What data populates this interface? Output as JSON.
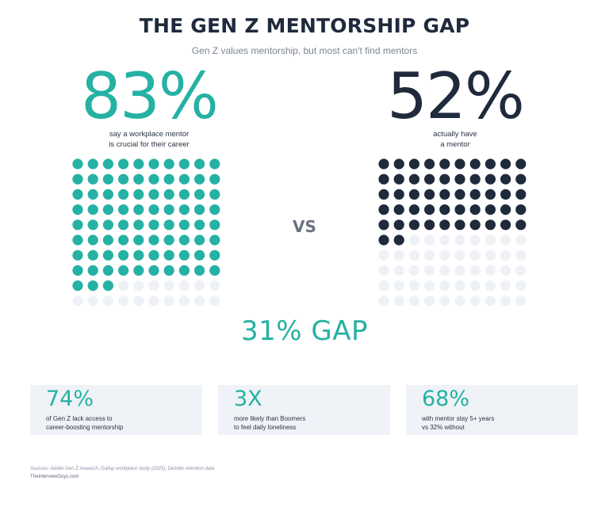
{
  "header": {
    "title": "THE GEN Z MENTORSHIP GAP",
    "subtitle": "Gen Z values mentorship, but most can't find mentors"
  },
  "left_stat": {
    "value": "83%",
    "caption": "say a workplace mentor\nis crucial for their career",
    "color": "#25b1a3"
  },
  "right_stat": {
    "value": "52%",
    "caption": "actually have\na mentor",
    "color": "#1f2a3c"
  },
  "vs_label": "VS",
  "gap_label": "31% GAP",
  "cards": [
    {
      "value": "74%",
      "desc": "of Gen Z lack access to\ncareer-boosting mentorship"
    },
    {
      "value": "3X",
      "desc": "more likely than Boomers\nto feel daily loneliness"
    },
    {
      "value": "68%",
      "desc": "with mentor stay 5+ years\nvs 32% without"
    }
  ],
  "footer": {
    "sources": "Sources: Adobe Gen Z research, Gallup workplace study (2025), Deloitte retention data",
    "site": "TheInterviewGuys.com"
  },
  "chart_data": [
    {
      "type": "waffle",
      "grid": [
        10,
        10
      ],
      "value": 83,
      "total": 100,
      "filled_color": "#25b1a3",
      "empty_color": "#eef1f6"
    },
    {
      "type": "waffle",
      "grid": [
        10,
        10
      ],
      "value": 52,
      "total": 100,
      "filled_color": "#1f2a3c",
      "empty_color": "#eef1f6"
    }
  ]
}
